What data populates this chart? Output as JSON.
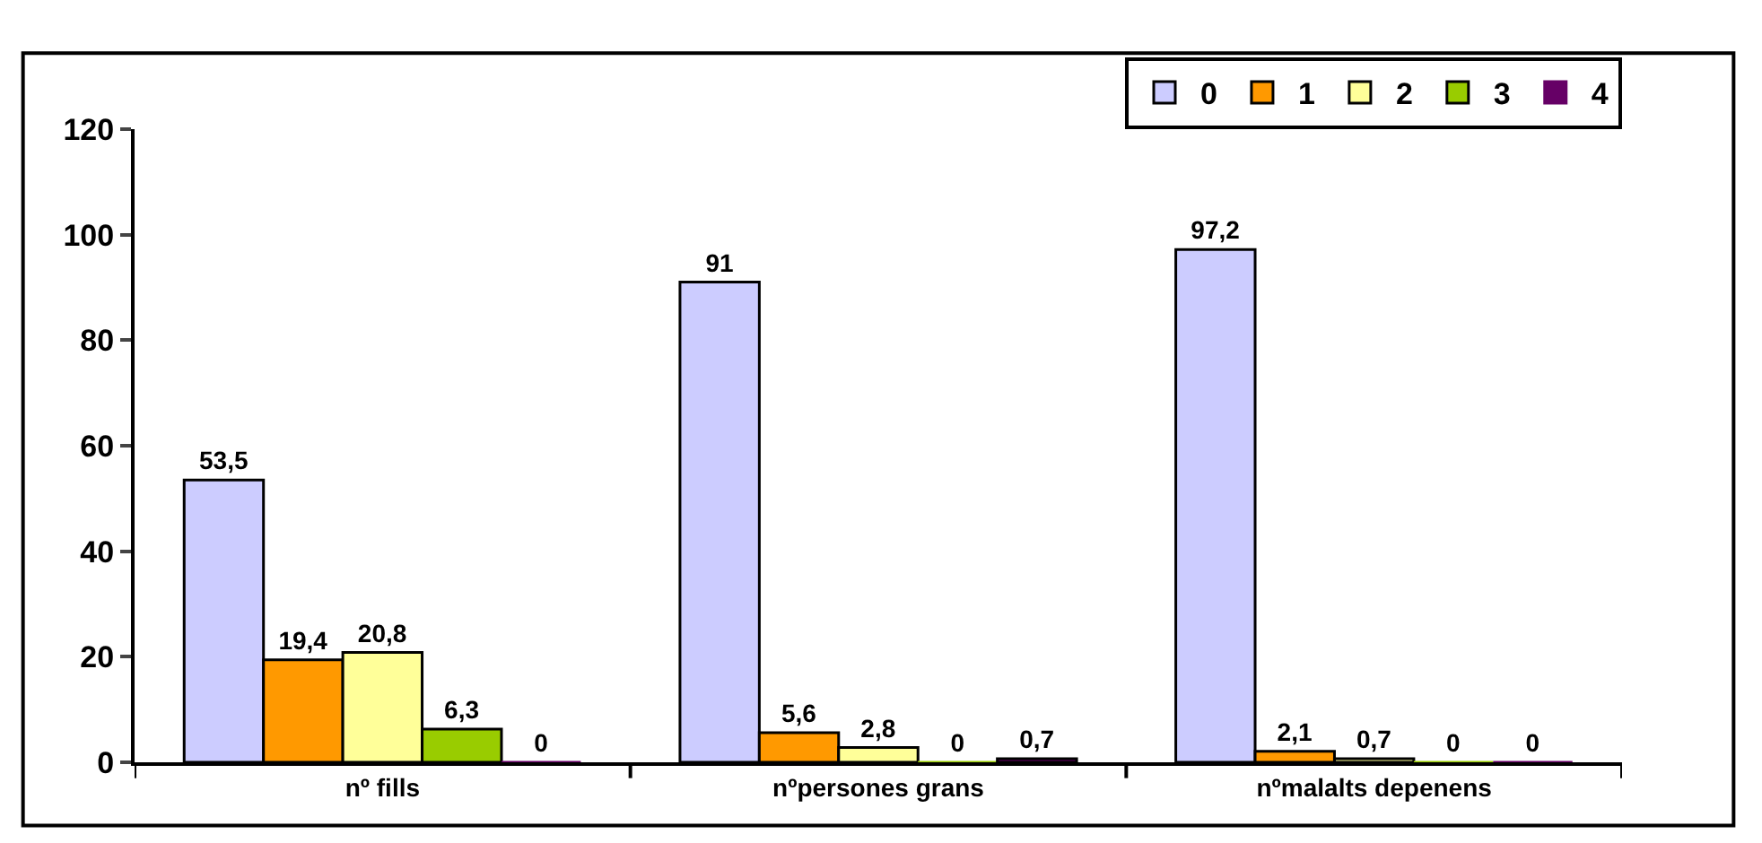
{
  "chart_data": {
    "type": "bar",
    "categories": [
      "nº fills",
      "nºpersones grans",
      "nºmalalts depenens"
    ],
    "series": [
      {
        "name": "0",
        "color": "#ccccff",
        "values": [
          53.5,
          91,
          97.2
        ],
        "value_labels": [
          "53,5",
          "91",
          "97,2"
        ]
      },
      {
        "name": "1",
        "color": "#ff9900",
        "values": [
          19.4,
          5.6,
          2.1
        ],
        "value_labels": [
          "19,4",
          "5,6",
          "2,1"
        ]
      },
      {
        "name": "2",
        "color": "#ffff99",
        "values": [
          20.8,
          2.8,
          0.7
        ],
        "value_labels": [
          "20,8",
          "2,8",
          "0,7"
        ]
      },
      {
        "name": "3",
        "color": "#99cc00",
        "values": [
          6.3,
          0,
          0
        ],
        "value_labels": [
          "6,3",
          "0",
          "0"
        ]
      },
      {
        "name": "4",
        "color": "#660066",
        "values": [
          0,
          0.7,
          0
        ],
        "value_labels": [
          "0",
          "0,7",
          "0"
        ]
      }
    ],
    "ylim": [
      0,
      120
    ],
    "yticks": [
      0,
      20,
      40,
      60,
      80,
      100,
      120
    ],
    "grid": false,
    "legend": "top right"
  }
}
